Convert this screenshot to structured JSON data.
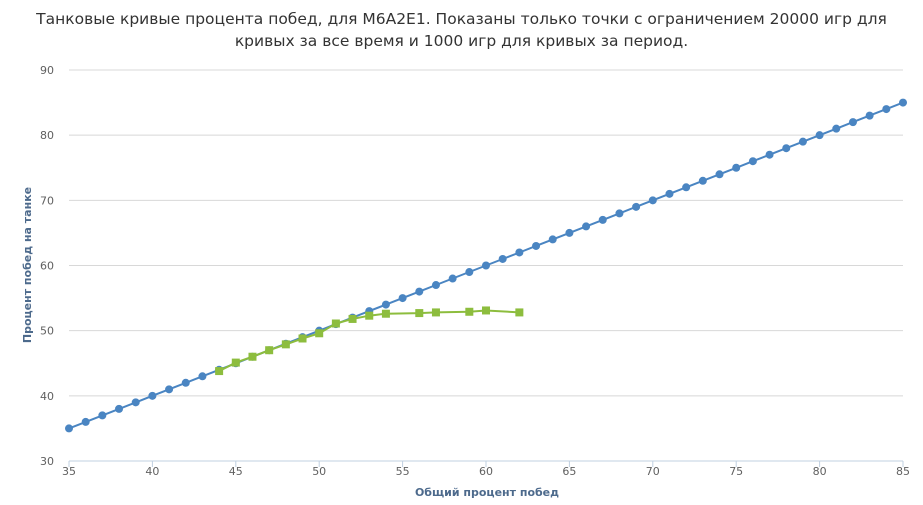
{
  "chart_data": {
    "type": "line",
    "title_lines": [
      "Танковые кривые процента побед, для M6A2E1. Показаны только точки с ограничением 20000 игр для",
      "кривых за все время и 1000 игр для кривых за период."
    ],
    "xlabel": "Общий процент побед",
    "ylabel": "Процент побед на танке",
    "xlim": [
      35,
      85
    ],
    "ylim": [
      30,
      90
    ],
    "xticks": [
      "35",
      "40",
      "45",
      "50",
      "55",
      "60",
      "65",
      "70",
      "75",
      "80",
      "85"
    ],
    "yticks": [
      "30",
      "40",
      "50",
      "60",
      "70",
      "80",
      "90"
    ],
    "grid": true,
    "series": [
      {
        "color": "#4a85c2",
        "marker": "circle",
        "x": [
          35,
          36,
          37,
          38,
          39,
          40,
          41,
          42,
          43,
          44,
          45,
          46,
          47,
          48,
          49,
          50,
          51,
          52,
          53,
          54,
          55,
          56,
          57,
          58,
          59,
          60,
          61,
          62,
          63,
          64,
          65,
          66,
          67,
          68,
          69,
          70,
          71,
          72,
          73,
          74,
          75,
          76,
          77,
          78,
          79,
          80,
          81,
          82,
          83,
          84,
          85
        ],
        "y": [
          35,
          36,
          37,
          38,
          39,
          40,
          41,
          42,
          43,
          44,
          45,
          46,
          47,
          48,
          49,
          50,
          51,
          52,
          53,
          54,
          55,
          56,
          57,
          58,
          59,
          60,
          61,
          62,
          63,
          64,
          65,
          66,
          67,
          68,
          69,
          70,
          71,
          72,
          73,
          74,
          75,
          76,
          77,
          78,
          79,
          80,
          81,
          82,
          83,
          84,
          85
        ]
      },
      {
        "color": "#8dbd3e",
        "marker": "square",
        "x": [
          44,
          45,
          46,
          47,
          48,
          49,
          50,
          51,
          52,
          53,
          54,
          56,
          57,
          59,
          60,
          62
        ],
        "y": [
          43.8,
          45.1,
          46.0,
          47.0,
          47.9,
          48.8,
          49.6,
          51.1,
          51.8,
          52.3,
          52.6,
          52.7,
          52.8,
          52.9,
          53.1,
          52.8
        ]
      }
    ]
  }
}
